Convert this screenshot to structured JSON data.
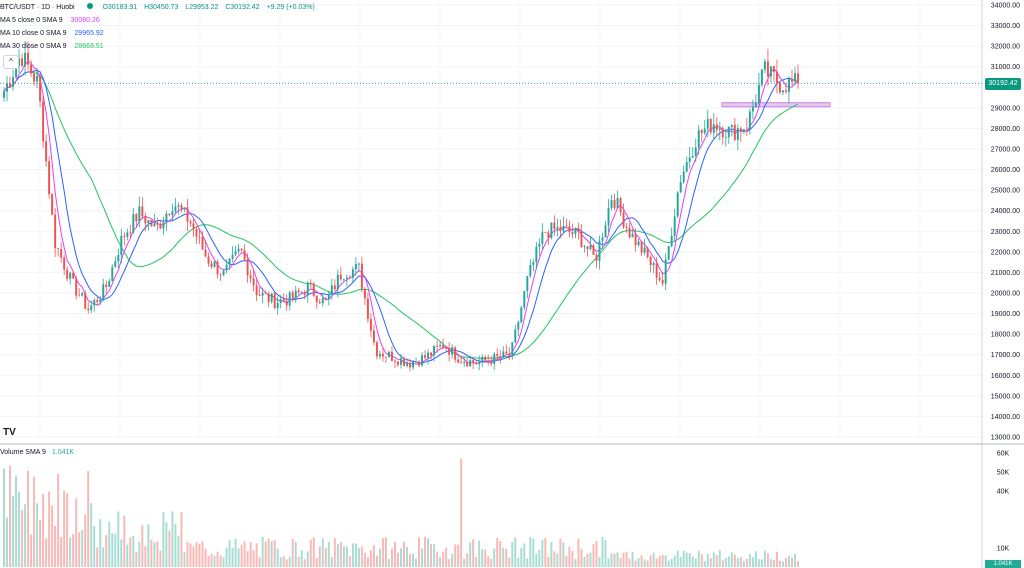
{
  "header": {
    "pair": "BTC/USDT · 1D · Huobi",
    "open": "O30183.91",
    "high": "H30450.73",
    "low": "L29953.22",
    "close": "C30192.42",
    "change": "+9.29 (+0.03%)"
  },
  "indicators": [
    {
      "label": "MA 5 close 0 SMA 9",
      "value": "30080.26",
      "color": "#e040fb"
    },
    {
      "label": "MA 10 close 0 SMA 9",
      "value": "29965.92",
      "color": "#2962ff"
    },
    {
      "label": "MA 30 close 0 SMA 9",
      "value": "28668.51",
      "color": "#22c55e"
    }
  ],
  "volume_label": "Volume SMA 9",
  "volume_value": "1.041K",
  "last_price": "30192.42",
  "volume_badge": "1.041K",
  "logo": "TV",
  "collapse_icon": "^",
  "colors": {
    "up": "#26a69a",
    "down": "#ef5350",
    "up_volume": "#a7dcd3",
    "down_volume": "#f7b8b6"
  },
  "chart_data": {
    "type": "candlestick",
    "price_axis_labels": [
      "34000.00",
      "33000.00",
      "32000.00",
      "31000.00",
      "30000.00",
      "29000.00",
      "28000.00",
      "27000.00",
      "26000.00",
      "25000.00",
      "24000.00",
      "23000.00",
      "22000.00",
      "21000.00",
      "20000.00",
      "19000.00",
      "18000.00",
      "17000.00",
      "16000.00",
      "15000.00",
      "14000.00",
      "13000.00"
    ],
    "volume_axis_labels": [
      "60K",
      "50K",
      "40K",
      "10K"
    ],
    "ylim": [
      12700,
      34300
    ],
    "volume_ylim": [
      0,
      60000
    ],
    "resistance_zone": [
      29050,
      29250
    ],
    "close_path": [
      29800,
      31600,
      30200,
      22500,
      20500,
      19200,
      20200,
      22700,
      23900,
      23100,
      24400,
      23500,
      21700,
      20900,
      22100,
      20000,
      19600,
      19700,
      20300,
      19500,
      21000,
      21200,
      17200,
      16900,
      16600,
      16900,
      17500,
      16800,
      16600,
      16800,
      17000,
      20700,
      23000,
      23100,
      22800,
      21600,
      24800,
      23000,
      21800,
      20500,
      25500,
      27600,
      28300,
      27800,
      28200,
      30800,
      30150,
      30192.42
    ]
  }
}
